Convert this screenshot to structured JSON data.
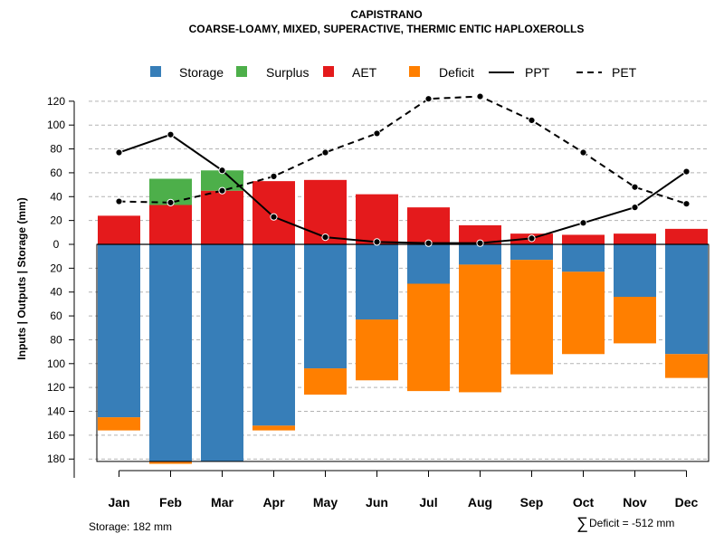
{
  "chart_data": {
    "type": "bar",
    "title": "CAPISTRANO",
    "subtitle": "COARSE-LOAMY, MIXED, SUPERACTIVE, THERMIC ENTIC HAPLOXEROLLS",
    "ylabel": "Inputs | Outputs | Storage    (mm)",
    "categories": [
      "Jan",
      "Feb",
      "Mar",
      "Apr",
      "May",
      "Jun",
      "Jul",
      "Aug",
      "Sep",
      "Oct",
      "Nov",
      "Dec"
    ],
    "ylim": [
      -182,
      130
    ],
    "y_ticks": [
      120,
      100,
      80,
      60,
      40,
      20,
      0,
      -20,
      -40,
      -60,
      -80,
      -100,
      -120,
      -140,
      -160,
      -180
    ],
    "y_tick_labels": [
      "120",
      "100",
      "80",
      "60",
      "40",
      "20",
      "0",
      "20",
      "40",
      "60",
      "80",
      "100",
      "120",
      "140",
      "160",
      "180"
    ],
    "legend": [
      "Storage",
      "Surplus",
      "AET",
      "Deficit",
      "PPT",
      "PET"
    ],
    "legend_position": "top",
    "grid": true,
    "series": [
      {
        "name": "AET",
        "color": "#e41a1c",
        "values": [
          24,
          33,
          45,
          53,
          54,
          42,
          31,
          16,
          9,
          8,
          9,
          13
        ]
      },
      {
        "name": "Surplus",
        "color": "#4daf4a",
        "values": [
          0,
          22,
          17,
          0,
          0,
          0,
          0,
          0,
          0,
          0,
          0,
          0
        ]
      },
      {
        "name": "Storage",
        "color": "#377eb8",
        "values": [
          -145,
          -182,
          -182,
          -152,
          -104,
          -63,
          -33,
          -17,
          -13,
          -23,
          -44,
          -92
        ]
      },
      {
        "name": "Deficit",
        "color": "#ff7f00",
        "values": [
          -11,
          -2,
          0,
          -4,
          -22,
          -51,
          -90,
          -107,
          -96,
          -69,
          -39,
          -20
        ]
      },
      {
        "name": "PPT",
        "style": "solid",
        "values": [
          77,
          92,
          62,
          23,
          6,
          2,
          1,
          1,
          5,
          18,
          31,
          61
        ]
      },
      {
        "name": "PET",
        "style": "dashed",
        "values": [
          36,
          35,
          45,
          57,
          77,
          93,
          122,
          124,
          104,
          77,
          48,
          34
        ]
      }
    ],
    "colors": {
      "storage": "#377eb8",
      "surplus": "#4daf4a",
      "aet": "#e41a1c",
      "deficit": "#ff7f00",
      "grid": "#b3b3b3"
    },
    "footer_left": "Storage: 182 mm",
    "footer_right_symbol": "∑",
    "footer_right": "Deficit = -512 mm"
  }
}
